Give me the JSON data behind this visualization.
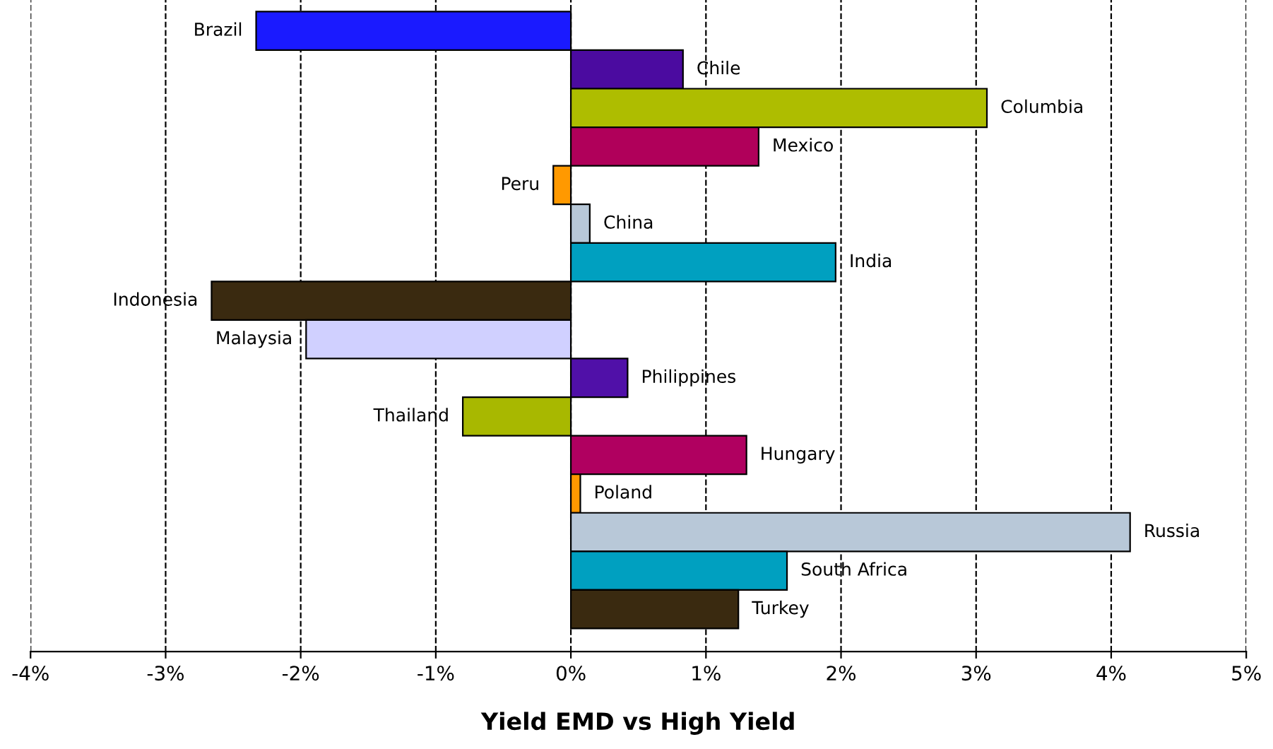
{
  "chart_data": {
    "type": "bar",
    "orientation": "horizontal",
    "xlabel": "Yield EMD vs High Yield",
    "categories": [
      "Brazil",
      "Chile",
      "Columbia",
      "Mexico",
      "Peru",
      "China",
      "India",
      "Indonesia",
      "Malaysia",
      "Philippines",
      "Thailand",
      "Hungary",
      "Poland",
      "Russia",
      "South Africa",
      "Turkey"
    ],
    "values": [
      -2.33,
      0.83,
      3.08,
      1.39,
      -0.13,
      0.14,
      1.96,
      -2.66,
      -1.96,
      0.42,
      -0.8,
      1.3,
      0.07,
      4.14,
      1.6,
      1.24
    ],
    "colors": [
      "#1a1aff",
      "#4b0ba0",
      "#aebd00",
      "#b0005a",
      "#ff9900",
      "#b8c8d8",
      "#00a0c0",
      "#3a2a10",
      "#d0d0ff",
      "#5010a8",
      "#a8b800",
      "#b00060",
      "#ff9900",
      "#b8c8d8",
      "#00a0c0",
      "#3a2a10"
    ],
    "xlim": [
      -4,
      5
    ],
    "xticks": [
      {
        "value": -4,
        "label": "-4%"
      },
      {
        "value": -3,
        "label": "-3%"
      },
      {
        "value": -2,
        "label": "-2%"
      },
      {
        "value": -1,
        "label": "-1%"
      },
      {
        "value": 0,
        "label": "0%"
      },
      {
        "value": 1,
        "label": "1%"
      },
      {
        "value": 2,
        "label": "2%"
      },
      {
        "value": 3,
        "label": "3%"
      },
      {
        "value": 4,
        "label": "4%"
      },
      {
        "value": 5,
        "label": "5%"
      }
    ],
    "grid": "x",
    "line_style": "dashed",
    "tick_labels": "x"
  }
}
